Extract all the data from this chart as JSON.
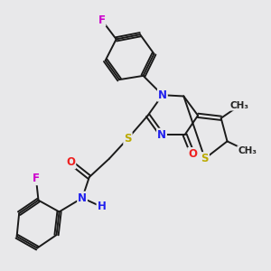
{
  "bg_color": "#e8e8ea",
  "bond_color": "#1a1a1a",
  "bond_width": 1.4,
  "dbo": 0.05,
  "atom_colors": {
    "N": "#2020ee",
    "O": "#ee2020",
    "S": "#bbaa00",
    "F": "#cc00cc",
    "C": "#1a1a1a",
    "H": "#2020ee"
  },
  "fs": 8.5
}
